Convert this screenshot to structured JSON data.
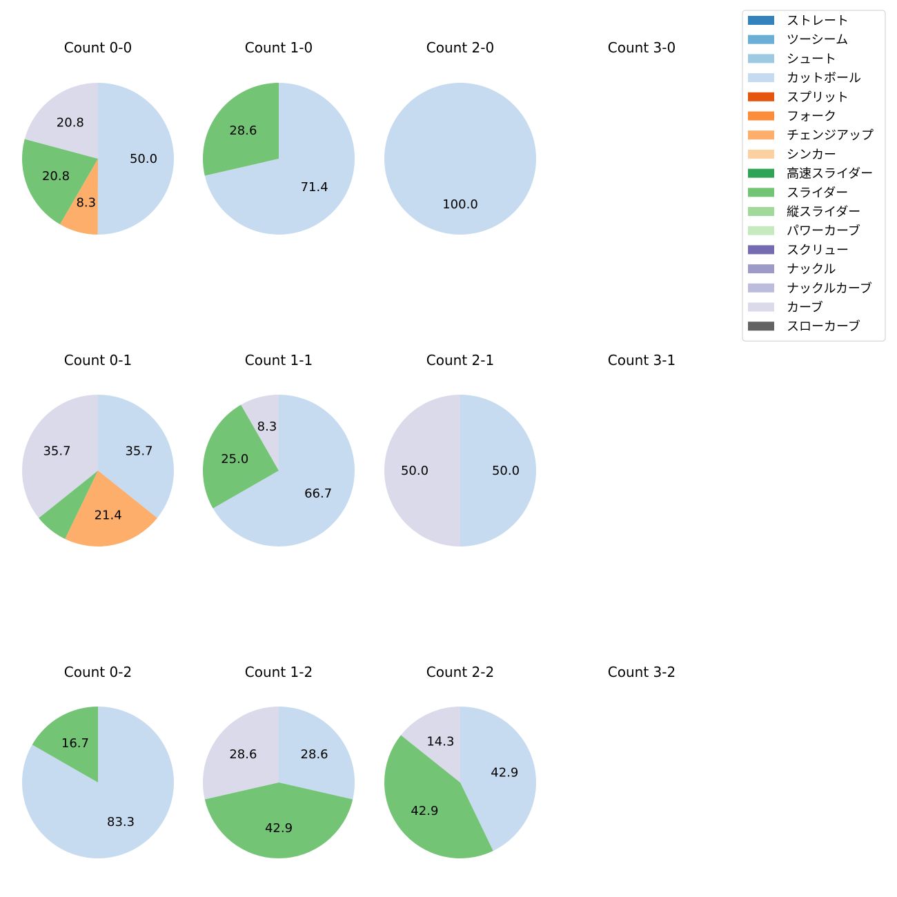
{
  "chart_data": {
    "type": "pie",
    "legend": {
      "placement": "top-right",
      "entries": [
        {
          "name": "ストレート",
          "color": "#3182bd"
        },
        {
          "name": "ツーシーム",
          "color": "#6baed6"
        },
        {
          "name": "シュート",
          "color": "#9ecae1"
        },
        {
          "name": "カットボール",
          "color": "#c6dbef"
        },
        {
          "name": "スプリット",
          "color": "#e6550d"
        },
        {
          "name": "フォーク",
          "color": "#fd8d3c"
        },
        {
          "name": "チェンジアップ",
          "color": "#fdae6b"
        },
        {
          "name": "シンカー",
          "color": "#fdd0a2"
        },
        {
          "name": "高速スライダー",
          "color": "#31a354"
        },
        {
          "name": "スライダー",
          "color": "#74c476"
        },
        {
          "name": "縦スライダー",
          "color": "#a1d99b"
        },
        {
          "name": "パワーカーブ",
          "color": "#c7e9c0"
        },
        {
          "name": "スクリュー",
          "color": "#756bb1"
        },
        {
          "name": "ナックル",
          "color": "#9e9ac8"
        },
        {
          "name": "ナックルカーブ",
          "color": "#bcbddc"
        },
        {
          "name": "カーブ",
          "color": "#dadaeb"
        },
        {
          "name": "スローカーブ",
          "color": "#636363"
        }
      ]
    },
    "pies": [
      {
        "title": "Count 0-0",
        "slices": [
          {
            "name": "カットボール",
            "value": 50.0,
            "label": "50.0"
          },
          {
            "name": "チェンジアップ",
            "value": 8.3,
            "label": "8.3"
          },
          {
            "name": "スライダー",
            "value": 20.8,
            "label": "20.8"
          },
          {
            "name": "カーブ",
            "value": 20.8,
            "label": "20.8"
          }
        ]
      },
      {
        "title": "Count 1-0",
        "slices": [
          {
            "name": "カットボール",
            "value": 71.4,
            "label": "71.4"
          },
          {
            "name": "スライダー",
            "value": 28.6,
            "label": "28.6"
          }
        ]
      },
      {
        "title": "Count 2-0",
        "slices": [
          {
            "name": "カットボール",
            "value": 100.0,
            "label": "100.0"
          }
        ]
      },
      {
        "title": "Count 3-0",
        "slices": []
      },
      {
        "title": "Count 0-1",
        "slices": [
          {
            "name": "カットボール",
            "value": 35.7,
            "label": "35.7"
          },
          {
            "name": "チェンジアップ",
            "value": 21.4,
            "label": "21.4"
          },
          {
            "name": "スライダー",
            "value": 7.1,
            "label": ""
          },
          {
            "name": "カーブ",
            "value": 35.7,
            "label": "35.7"
          }
        ]
      },
      {
        "title": "Count 1-1",
        "slices": [
          {
            "name": "カットボール",
            "value": 66.7,
            "label": "66.7"
          },
          {
            "name": "スライダー",
            "value": 25.0,
            "label": "25.0"
          },
          {
            "name": "カーブ",
            "value": 8.3,
            "label": "8.3"
          }
        ]
      },
      {
        "title": "Count 2-1",
        "slices": [
          {
            "name": "カットボール",
            "value": 50.0,
            "label": "50.0"
          },
          {
            "name": "カーブ",
            "value": 50.0,
            "label": "50.0"
          }
        ]
      },
      {
        "title": "Count 3-1",
        "slices": []
      },
      {
        "title": "Count 0-2",
        "slices": [
          {
            "name": "カットボール",
            "value": 83.3,
            "label": "83.3"
          },
          {
            "name": "スライダー",
            "value": 16.7,
            "label": "16.7"
          }
        ]
      },
      {
        "title": "Count 1-2",
        "slices": [
          {
            "name": "カットボール",
            "value": 28.6,
            "label": "28.6"
          },
          {
            "name": "スライダー",
            "value": 42.9,
            "label": "42.9"
          },
          {
            "name": "カーブ",
            "value": 28.6,
            "label": "28.6"
          }
        ]
      },
      {
        "title": "Count 2-2",
        "slices": [
          {
            "name": "カットボール",
            "value": 42.9,
            "label": "42.9"
          },
          {
            "name": "スライダー",
            "value": 42.9,
            "label": "42.9"
          },
          {
            "name": "カーブ",
            "value": 14.3,
            "label": "14.3"
          }
        ]
      },
      {
        "title": "Count 3-2",
        "slices": []
      }
    ]
  }
}
